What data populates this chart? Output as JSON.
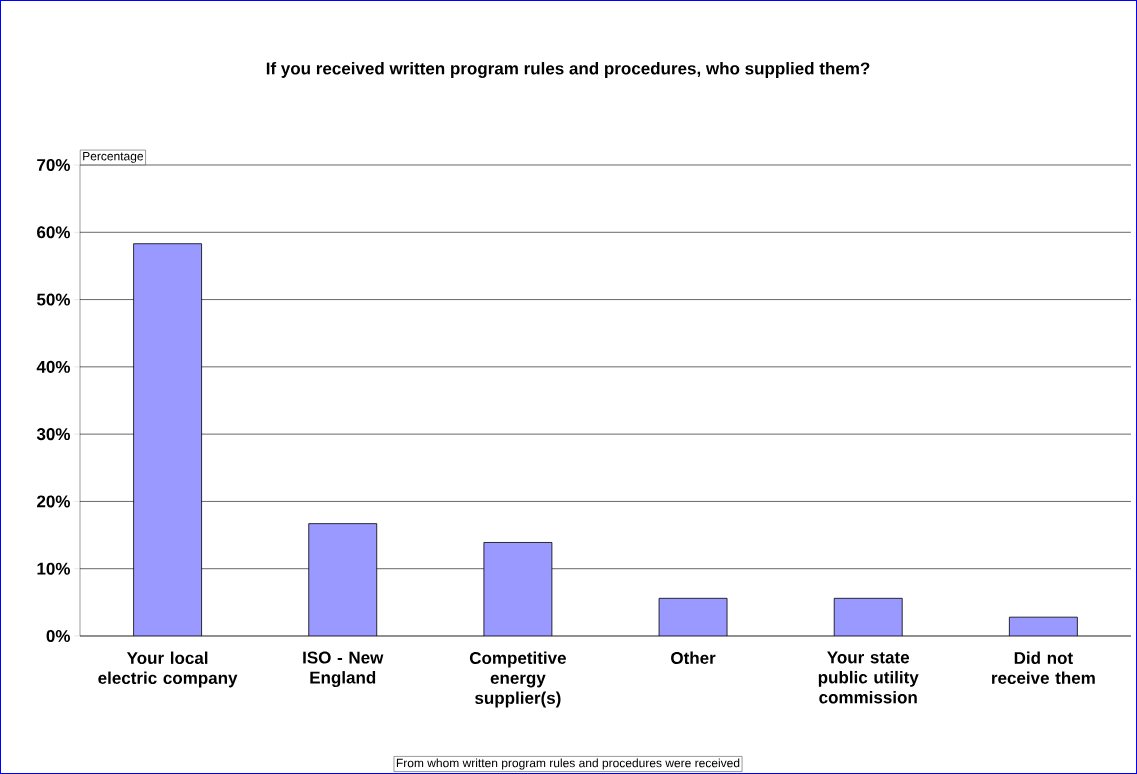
{
  "chart_data": {
    "type": "bar",
    "title": "If you received written program rules and procedures, who supplied them?",
    "ylabel": "Percentage",
    "xlabel": "From whom written program rules and procedures were received",
    "categories": [
      "Your local electric company",
      "ISO - New England",
      "Competitive energy supplier(s)",
      "Other",
      "Your state public utility commission",
      "Did not receive them"
    ],
    "values": [
      58.3,
      16.7,
      13.9,
      5.6,
      5.6,
      2.8
    ],
    "color": "#9999ff",
    "ylim": [
      0,
      70
    ],
    "yticks": [
      {
        "value": 0,
        "label": "0%"
      },
      {
        "value": 10,
        "label": "10%"
      },
      {
        "value": 20,
        "label": "20%"
      },
      {
        "value": 30,
        "label": "30%"
      },
      {
        "value": 40,
        "label": "40%"
      },
      {
        "value": 50,
        "label": "50%"
      },
      {
        "value": 60,
        "label": "60%"
      },
      {
        "value": 70,
        "label": "70%"
      }
    ],
    "grid": "y"
  }
}
